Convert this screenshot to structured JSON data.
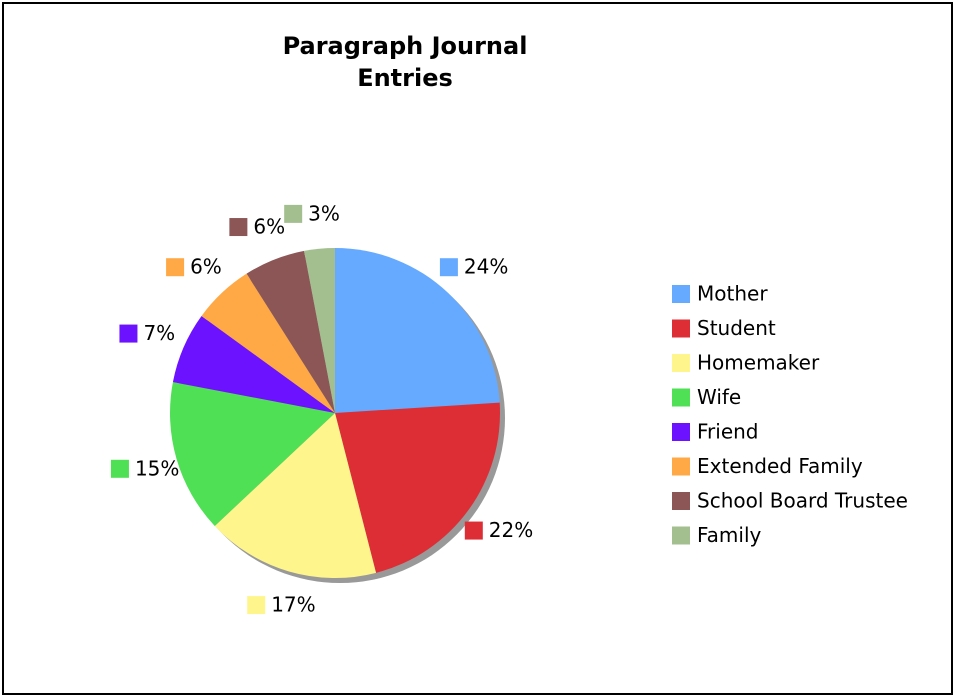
{
  "chart_data": {
    "type": "pie",
    "title": "Paragraph Journal Entries",
    "categories": [
      "Mother",
      "Student",
      "Homemaker",
      "Wife",
      "Friend",
      "Extended Family",
      "School Board Trustee",
      "Family"
    ],
    "values": [
      24,
      22,
      17,
      15,
      7,
      6,
      6,
      3
    ],
    "value_labels": [
      "24%",
      "22%",
      "17%",
      "15%",
      "7%",
      "6%",
      "6%",
      "3%"
    ],
    "colors": [
      "#66aaff",
      "#dd2e35",
      "#fff58d",
      "#4fe055",
      "#6c12ff",
      "#ffa846",
      "#8c5656",
      "#a3bf8f"
    ],
    "legend": "right"
  }
}
